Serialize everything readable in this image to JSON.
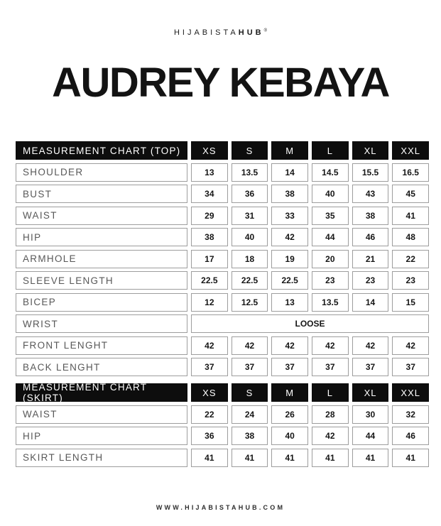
{
  "brand": {
    "name_regular": "HIJABISTA",
    "name_bold": "HUB",
    "mark": "®"
  },
  "title": "AUDREY KEBAYA",
  "sizes": [
    "XS",
    "S",
    "M",
    "L",
    "XL",
    "XXL"
  ],
  "colors": {
    "header_bg": "#0d0d0d",
    "header_text": "#ffffff",
    "cell_border": "#9d9d9d",
    "label_text": "#585858",
    "value_text": "#161616"
  },
  "tables": [
    {
      "header": "MEASUREMENT CHART (TOP)",
      "rows": [
        {
          "label": "SHOULDER",
          "values": [
            "13",
            "13.5",
            "14",
            "14.5",
            "15.5",
            "16.5"
          ]
        },
        {
          "label": "BUST",
          "values": [
            "34",
            "36",
            "38",
            "40",
            "43",
            "45"
          ]
        },
        {
          "label": "WAIST",
          "values": [
            "29",
            "31",
            "33",
            "35",
            "38",
            "41"
          ]
        },
        {
          "label": "HIP",
          "values": [
            "38",
            "40",
            "42",
            "44",
            "46",
            "48"
          ]
        },
        {
          "label": "ARMHOLE",
          "values": [
            "17",
            "18",
            "19",
            "20",
            "21",
            "22"
          ]
        },
        {
          "label": "SLEEVE LENGTH",
          "values": [
            "22.5",
            "22.5",
            "22.5",
            "23",
            "23",
            "23"
          ]
        },
        {
          "label": "BICEP",
          "values": [
            "12",
            "12.5",
            "13",
            "13.5",
            "14",
            "15"
          ]
        },
        {
          "label": "WRIST",
          "span": true,
          "values": [
            "LOOSE"
          ]
        },
        {
          "label": "FRONT LENGHT",
          "values": [
            "42",
            "42",
            "42",
            "42",
            "42",
            "42"
          ]
        },
        {
          "label": "BACK LENGHT",
          "values": [
            "37",
            "37",
            "37",
            "37",
            "37",
            "37"
          ]
        }
      ]
    },
    {
      "header": "MEASUREMENT CHART (SKIRT)",
      "rows": [
        {
          "label": "WAIST",
          "values": [
            "22",
            "24",
            "26",
            "28",
            "30",
            "32"
          ]
        },
        {
          "label": "HIP",
          "values": [
            "36",
            "38",
            "40",
            "42",
            "44",
            "46"
          ]
        },
        {
          "label": "SKIRT LENGTH",
          "values": [
            "41",
            "41",
            "41",
            "41",
            "41",
            "41"
          ]
        }
      ]
    }
  ],
  "footer": {
    "website": "WWW.HIJABISTAHUB.COM"
  }
}
